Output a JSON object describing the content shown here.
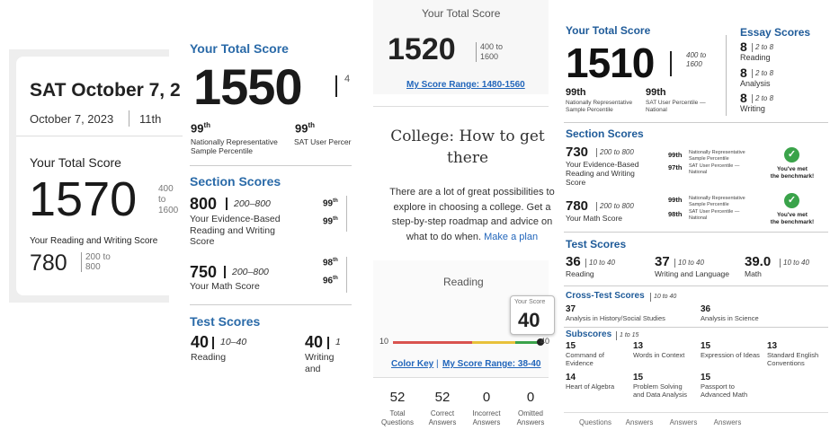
{
  "panel1": {
    "title": "SAT October 7, 2",
    "date": "October 7, 2023",
    "grade": "11th",
    "total_label": "Your Total Score",
    "total_score": "1570",
    "total_range": "400 to 1600",
    "rw_label": "Your Reading and Writing Score",
    "rw_score": "780",
    "rw_range_1": "200 to",
    "rw_range_2": "800"
  },
  "panel2": {
    "heading": "Your Total Score",
    "total_score": "1550",
    "range_cut": "4",
    "pct1": "99",
    "pct1_label_1": "Nationally Representative",
    "pct1_label_2": "Sample Percentile",
    "pct2": "99",
    "pct2_label": "SAT User Percer",
    "section_heading": "Section Scores",
    "ebrw_score": "800",
    "ebrw_range": "200–800",
    "ebrw_desc_1": "Your Evidence-Based",
    "ebrw_desc_2": "Reading and Writing",
    "ebrw_desc_3": "Score",
    "ebrw_p1": "99",
    "ebrw_p2": "99",
    "math_score": "750",
    "math_range": "200–800",
    "math_desc": "Your Math Score",
    "math_p1": "98",
    "math_p2": "96",
    "test_heading": "Test Scores",
    "reading_score": "40",
    "reading_range": "10–40",
    "reading_label": "Reading",
    "writing_score": "40",
    "writing_range": "1",
    "writing_label": "Writing and"
  },
  "panel3": {
    "title": "Your Total Score",
    "total_score": "1520",
    "range_1": "400 to",
    "range_2": "1600",
    "range_link": "My Score Range: 1480-1560",
    "heading_1": "College: How to get",
    "heading_2": "there",
    "para_1": "There are a lot of great possibilities to",
    "para_2": "explore in choosing a college. Get a",
    "para_3": "step-by-step roadmap and advice on",
    "para_4": "what to do when.",
    "para_link": "Make a plan",
    "reading_label": "Reading",
    "tip_label": "Your Score",
    "tip_value": "40",
    "axis_min": "10",
    "axis_max": "40",
    "bottom_link_1": "Color Key",
    "bottom_link_sep": "|",
    "bottom_link_2": "My Score Range: 38-40",
    "stats": [
      {
        "value": "52",
        "label_1": "Total",
        "label_2": "Questions"
      },
      {
        "value": "52",
        "label_1": "Correct",
        "label_2": "Answers"
      },
      {
        "value": "0",
        "label_1": "Incorrect",
        "label_2": "Answers"
      },
      {
        "value": "0",
        "label_1": "Omitted",
        "label_2": "Answers"
      }
    ],
    "colors": {
      "red": "#d9534f",
      "yellow": "#e8c13b",
      "green": "#3aa34a"
    }
  },
  "panel4": {
    "total_heading": "Your Total Score",
    "total_score": "1510",
    "total_range_1": "400 to",
    "total_range_2": "1600",
    "pct1": "99th",
    "pct1_label_1": "Nationally Representative",
    "pct1_label_2": "Sample Percentile",
    "pct2": "99th",
    "pct2_label_1": "SAT User Percentile —",
    "pct2_label_2": "National",
    "essay_heading": "Essay Scores",
    "essay": [
      {
        "score": "8",
        "range": "2 to 8",
        "label": "Reading"
      },
      {
        "score": "8",
        "range": "2 to 8",
        "label": "Analysis"
      },
      {
        "score": "8",
        "range": "2 to 8",
        "label": "Writing"
      }
    ],
    "section_heading": "Section Scores",
    "ebrw_score": "730",
    "ebrw_range": "200 to 800",
    "ebrw_desc_1": "Your Evidence-Based",
    "ebrw_desc_2": "Reading and Writing",
    "ebrw_desc_3": "Score",
    "ebrw_p1": "99th",
    "ebrw_p1_l1": "Nationally Representative",
    "ebrw_p1_l2": "Sample Percentile",
    "ebrw_p2": "97th",
    "ebrw_p2_l1": "SAT User Percentile —",
    "ebrw_p2_l2": "National",
    "math_score": "780",
    "math_range": "200 to 800",
    "math_desc": "Your Math Score",
    "math_p1": "99th",
    "math_p1_l1": "Nationally Representative",
    "math_p1_l2": "Sample Percentile",
    "math_p2": "98th",
    "math_p2_l1": "SAT User Percentile —",
    "math_p2_l2": "National",
    "benchmark_1": "You've met",
    "benchmark_2": "the benchmark!",
    "test_heading": "Test Scores",
    "tests": [
      {
        "score": "36",
        "range": "10 to 40",
        "label": "Reading"
      },
      {
        "score": "37",
        "range": "10 to 40",
        "label": "Writing and Language"
      },
      {
        "score": "39.0",
        "range": "10 to 40",
        "label": "Math"
      }
    ],
    "cross_heading": "Cross-Test Scores",
    "cross_range": "10 to 40",
    "cross": [
      {
        "score": "37",
        "label": "Analysis in History/Social Studies"
      },
      {
        "score": "36",
        "label": "Analysis in Science"
      }
    ],
    "sub_heading": "Subscores",
    "sub_range": "1 to 15",
    "subscores": [
      {
        "score": "15",
        "l1": "Command of",
        "l2": "Evidence"
      },
      {
        "score": "13",
        "l1": "Words in Context",
        "l2": ""
      },
      {
        "score": "15",
        "l1": "Expression of Ideas",
        "l2": ""
      },
      {
        "score": "13",
        "l1": "Standard English",
        "l2": "Conventions"
      },
      {
        "score": "14",
        "l1": "Heart of Algebra",
        "l2": ""
      },
      {
        "score": "15",
        "l1": "Problem Solving",
        "l2": "and Data Analysis"
      },
      {
        "score": "15",
        "l1": "Passport to",
        "l2": "Advanced Math"
      }
    ],
    "footer": [
      "Questions",
      "Answers",
      "Answers",
      "Answers"
    ],
    "check_color": "#3aa34a"
  }
}
